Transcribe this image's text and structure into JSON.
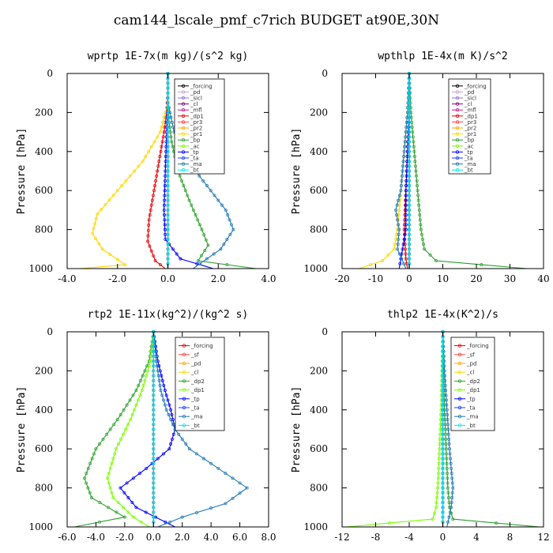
{
  "title": "cam144_lscale_pmf_c7rich  BUDGET at90E,30N",
  "chart_data": [
    {
      "type": "line",
      "title": "wprtp  1E-7x(m kg)/(s^2 kg)",
      "ylabel": "Pressure [hPa]",
      "xlim": [
        -4.0,
        4.0
      ],
      "ylim": [
        1000,
        0
      ],
      "xticks": [
        -4.0,
        -2.0,
        0.0,
        2.0,
        4.0
      ],
      "xticklabels": [
        "-4.0",
        "-2.0",
        "0.0",
        "2.0",
        "4.0"
      ],
      "yticks": [
        0,
        200,
        400,
        600,
        800,
        1000
      ],
      "legend_position": "top-right",
      "series": [
        {
          "name": "_forcing",
          "color": "#000000",
          "x": [
            0,
            0
          ],
          "y": [
            0,
            1000
          ]
        },
        {
          "name": "_pd",
          "color": "#c9a0dc",
          "x": [
            0,
            0
          ],
          "y": [
            0,
            1000
          ]
        },
        {
          "name": "_sicl",
          "color": "#9370db",
          "x": [
            0,
            0
          ],
          "y": [
            0,
            1000
          ]
        },
        {
          "name": "_cl",
          "color": "#800080",
          "x": [
            0,
            0
          ],
          "y": [
            0,
            1000
          ]
        },
        {
          "name": "_mfl",
          "color": "#c71585",
          "x": [
            0,
            0
          ],
          "y": [
            0,
            1000
          ]
        },
        {
          "name": "_dp1",
          "color": "#e60000",
          "x": [
            0,
            0,
            -0.05,
            -0.15,
            -0.35,
            -0.55,
            -0.75,
            -0.8,
            -0.5,
            -0.1
          ],
          "y": [
            0,
            100,
            200,
            300,
            450,
            600,
            750,
            860,
            960,
            1000
          ]
        },
        {
          "name": "_pr3",
          "color": "#ff4040",
          "x": [
            0,
            0
          ],
          "y": [
            0,
            1000
          ]
        },
        {
          "name": "_pr2",
          "color": "#ffa500",
          "x": [
            0,
            0
          ],
          "y": [
            0,
            1000
          ]
        },
        {
          "name": "_pr1",
          "color": "#ffd700",
          "x": [
            0,
            0,
            -0.3,
            -1.0,
            -2.0,
            -2.8,
            -3.0,
            -2.6,
            -1.7,
            -3.5
          ],
          "y": [
            0,
            150,
            300,
            450,
            600,
            720,
            820,
            900,
            980,
            1000
          ]
        },
        {
          "name": "_bp",
          "color": "#2ca02c",
          "x": [
            0,
            0,
            0.05,
            0.15,
            0.4,
            0.85,
            1.35,
            1.6,
            1.2,
            3.5
          ],
          "y": [
            0,
            150,
            250,
            350,
            500,
            650,
            800,
            880,
            960,
            1000
          ]
        },
        {
          "name": "_ac",
          "color": "#7cfc00",
          "x": [
            0,
            0
          ],
          "y": [
            0,
            1000
          ]
        },
        {
          "name": "_tp",
          "color": "#0000ff",
          "x": [
            0,
            0,
            -0.05,
            -0.1,
            -0.15,
            -0.1,
            0.5,
            1.8
          ],
          "y": [
            0,
            150,
            300,
            500,
            700,
            850,
            950,
            1000
          ]
        },
        {
          "name": "_ta",
          "color": "#1e3cff",
          "x": [
            0,
            0
          ],
          "y": [
            0,
            1000
          ]
        },
        {
          "name": "_ma",
          "color": "#1f77b4",
          "x": [
            0,
            0,
            0.25,
            0.6,
            1.1,
            1.7,
            2.3,
            2.6,
            2.1,
            1.0
          ],
          "y": [
            0,
            150,
            300,
            400,
            500,
            600,
            700,
            800,
            900,
            1000
          ]
        },
        {
          "name": "_bt",
          "color": "#00e5ee",
          "x": [
            0,
            0
          ],
          "y": [
            0,
            1000
          ]
        }
      ]
    },
    {
      "type": "line",
      "title": "wpthlp  1E-4x(m K)/s^2",
      "ylabel": "Pressure [hPa]",
      "xlim": [
        -20,
        40
      ],
      "ylim": [
        1000,
        0
      ],
      "xticks": [
        -20,
        -10,
        0,
        10,
        20,
        30,
        40
      ],
      "xticklabels": [
        "-20",
        "-10",
        "0",
        "10",
        "20",
        "30",
        "40"
      ],
      "yticks": [
        0,
        200,
        400,
        600,
        800,
        1000
      ],
      "legend_position": "top-right",
      "series": [
        {
          "name": "_forcing",
          "color": "#000000",
          "x": [
            0,
            0
          ],
          "y": [
            0,
            1000
          ]
        },
        {
          "name": "_pd",
          "color": "#c9a0dc",
          "x": [
            0,
            0
          ],
          "y": [
            0,
            1000
          ]
        },
        {
          "name": "_sicl",
          "color": "#9370db",
          "x": [
            0,
            0
          ],
          "y": [
            0,
            1000
          ]
        },
        {
          "name": "_cl",
          "color": "#800080",
          "x": [
            0,
            0
          ],
          "y": [
            0,
            1000
          ]
        },
        {
          "name": "_mfl",
          "color": "#c71585",
          "x": [
            0,
            0
          ],
          "y": [
            0,
            1000
          ]
        },
        {
          "name": "_dp1",
          "color": "#e60000",
          "x": [
            0,
            0,
            -0.5,
            -1.0,
            -1.5,
            -1.0,
            -0.5
          ],
          "y": [
            0,
            200,
            400,
            600,
            800,
            950,
            1000
          ]
        },
        {
          "name": "_pr3",
          "color": "#ff4040",
          "x": [
            0,
            0
          ],
          "y": [
            0,
            1000
          ]
        },
        {
          "name": "_pr2",
          "color": "#ffa500",
          "x": [
            0,
            0
          ],
          "y": [
            0,
            1000
          ]
        },
        {
          "name": "_pr1",
          "color": "#ffd700",
          "x": [
            0,
            -0.5,
            -1.5,
            -2.5,
            -3.5,
            -4.5,
            -8,
            -15
          ],
          "y": [
            0,
            200,
            400,
            600,
            800,
            900,
            960,
            1000
          ]
        },
        {
          "name": "_bp",
          "color": "#2ca02c",
          "x": [
            0,
            0.5,
            1.5,
            2.5,
            3.5,
            4.5,
            8,
            35
          ],
          "y": [
            0,
            200,
            400,
            600,
            800,
            900,
            960,
            1000
          ]
        },
        {
          "name": "_ac",
          "color": "#7cfc00",
          "x": [
            0,
            0
          ],
          "y": [
            0,
            1000
          ]
        },
        {
          "name": "_tp",
          "color": "#0000ff",
          "x": [
            0,
            0,
            -0.5,
            -1.0,
            -1.0,
            -3
          ],
          "y": [
            0,
            200,
            400,
            600,
            800,
            1000
          ]
        },
        {
          "name": "_ta",
          "color": "#1e3cff",
          "x": [
            0,
            0
          ],
          "y": [
            0,
            1000
          ]
        },
        {
          "name": "_ma",
          "color": "#1f77b4",
          "x": [
            0,
            -0.5,
            -1.5,
            -2.5,
            -4,
            -3,
            -3.5,
            -1
          ],
          "y": [
            0,
            200,
            400,
            600,
            700,
            800,
            900,
            1000
          ]
        },
        {
          "name": "_bt",
          "color": "#00e5ee",
          "x": [
            0,
            0
          ],
          "y": [
            0,
            1000
          ]
        }
      ]
    },
    {
      "type": "line",
      "title": "rtp2  1E-11x(kg^2)/(kg^2 s)",
      "ylabel": "Pressure [hPa]",
      "xlim": [
        -6.0,
        8.0
      ],
      "ylim": [
        1000,
        0
      ],
      "xticks": [
        -6.0,
        -4.0,
        -2.0,
        0.0,
        2.0,
        4.0,
        6.0,
        8.0
      ],
      "xticklabels": [
        "-6.0",
        "-4.0",
        "-2.0",
        "0.0",
        "2.0",
        "4.0",
        "6.0",
        "8.0"
      ],
      "yticks": [
        0,
        200,
        400,
        600,
        800,
        1000
      ],
      "legend_position": "top-right",
      "series": [
        {
          "name": "_forcing",
          "color": "#e60000",
          "x": [
            0,
            0
          ],
          "y": [
            0,
            1000
          ]
        },
        {
          "name": "_sf",
          "color": "#ff4040",
          "x": [
            0,
            0
          ],
          "y": [
            0,
            1000
          ]
        },
        {
          "name": "_pd",
          "color": "#ffa500",
          "x": [
            0,
            0
          ],
          "y": [
            0,
            1000
          ]
        },
        {
          "name": "_cl",
          "color": "#ffd700",
          "x": [
            0,
            0
          ],
          "y": [
            0,
            1000
          ]
        },
        {
          "name": "_dp2",
          "color": "#2ca02c",
          "x": [
            0,
            -0.3,
            -1.2,
            -2.5,
            -4.0,
            -4.8,
            -4.3,
            -2.0,
            -5.5
          ],
          "y": [
            0,
            150,
            300,
            450,
            600,
            750,
            850,
            950,
            1000
          ]
        },
        {
          "name": "_dp1",
          "color": "#7cfc00",
          "x": [
            0,
            -0.2,
            -0.8,
            -1.6,
            -2.6,
            -3.2,
            -2.8,
            -1.4,
            -0.3
          ],
          "y": [
            0,
            150,
            300,
            450,
            600,
            750,
            850,
            950,
            1000
          ]
        },
        {
          "name": "_tp",
          "color": "#0000ff",
          "x": [
            0,
            0.3,
            0.8,
            1.2,
            1.5,
            1.1,
            -0.5,
            -2.3,
            -1.2,
            1.5
          ],
          "y": [
            0,
            150,
            300,
            400,
            500,
            600,
            700,
            800,
            900,
            1000
          ]
        },
        {
          "name": "_ta",
          "color": "#1e3cff",
          "x": [
            0,
            0
          ],
          "y": [
            0,
            1000
          ]
        },
        {
          "name": "_ma",
          "color": "#1f77b4",
          "x": [
            0,
            0.2,
            0.5,
            0.9,
            1.5,
            2.5,
            4.5,
            6.5,
            5.0,
            2.0,
            0.3
          ],
          "y": [
            0,
            150,
            300,
            400,
            500,
            600,
            700,
            800,
            880,
            950,
            1000
          ]
        },
        {
          "name": "_bt",
          "color": "#00e5ee",
          "x": [
            0,
            0
          ],
          "y": [
            0,
            1000
          ]
        }
      ]
    },
    {
      "type": "line",
      "title": "thlp2  1E-4x(K^2)/s",
      "ylabel": "Pressure [hPa]",
      "xlim": [
        -12,
        12
      ],
      "ylim": [
        1000,
        0
      ],
      "xticks": [
        -12,
        -8,
        -4,
        0,
        4,
        8,
        12
      ],
      "xticklabels": [
        "-12",
        "-8",
        "-4",
        "0",
        "4",
        "8",
        "12"
      ],
      "yticks": [
        0,
        200,
        400,
        600,
        800,
        1000
      ],
      "legend_position": "top-right",
      "series": [
        {
          "name": "_forcing",
          "color": "#e60000",
          "x": [
            0,
            0
          ],
          "y": [
            0,
            1000
          ]
        },
        {
          "name": "_sf",
          "color": "#ff4040",
          "x": [
            0,
            0
          ],
          "y": [
            0,
            1000
          ]
        },
        {
          "name": "_pd",
          "color": "#ffa500",
          "x": [
            0,
            0
          ],
          "y": [
            0,
            1000
          ]
        },
        {
          "name": "_cl",
          "color": "#ffd700",
          "x": [
            0,
            0
          ],
          "y": [
            0,
            1000
          ]
        },
        {
          "name": "_dp2",
          "color": "#2ca02c",
          "x": [
            0,
            0.1,
            0.2,
            0.4,
            0.6,
            0.8,
            1.2,
            11.5
          ],
          "y": [
            0,
            200,
            400,
            600,
            800,
            900,
            960,
            1000
          ]
        },
        {
          "name": "_dp1",
          "color": "#7cfc00",
          "x": [
            0,
            -0.1,
            -0.2,
            -0.4,
            -0.6,
            -0.8,
            -1.2,
            -11.5
          ],
          "y": [
            0,
            200,
            400,
            600,
            800,
            900,
            960,
            1000
          ]
        },
        {
          "name": "_tp",
          "color": "#0000ff",
          "x": [
            0,
            0
          ],
          "y": [
            0,
            1000
          ]
        },
        {
          "name": "_ta",
          "color": "#1e3cff",
          "x": [
            0,
            0
          ],
          "y": [
            0,
            1000
          ]
        },
        {
          "name": "_ma",
          "color": "#1f77b4",
          "x": [
            0,
            0.2,
            0.5,
            0.8,
            1.0,
            1.2,
            1.0,
            0.5
          ],
          "y": [
            0,
            200,
            400,
            600,
            700,
            800,
            900,
            1000
          ]
        },
        {
          "name": "_bt",
          "color": "#00e5ee",
          "x": [
            0,
            0
          ],
          "y": [
            0,
            1000
          ]
        }
      ]
    }
  ]
}
